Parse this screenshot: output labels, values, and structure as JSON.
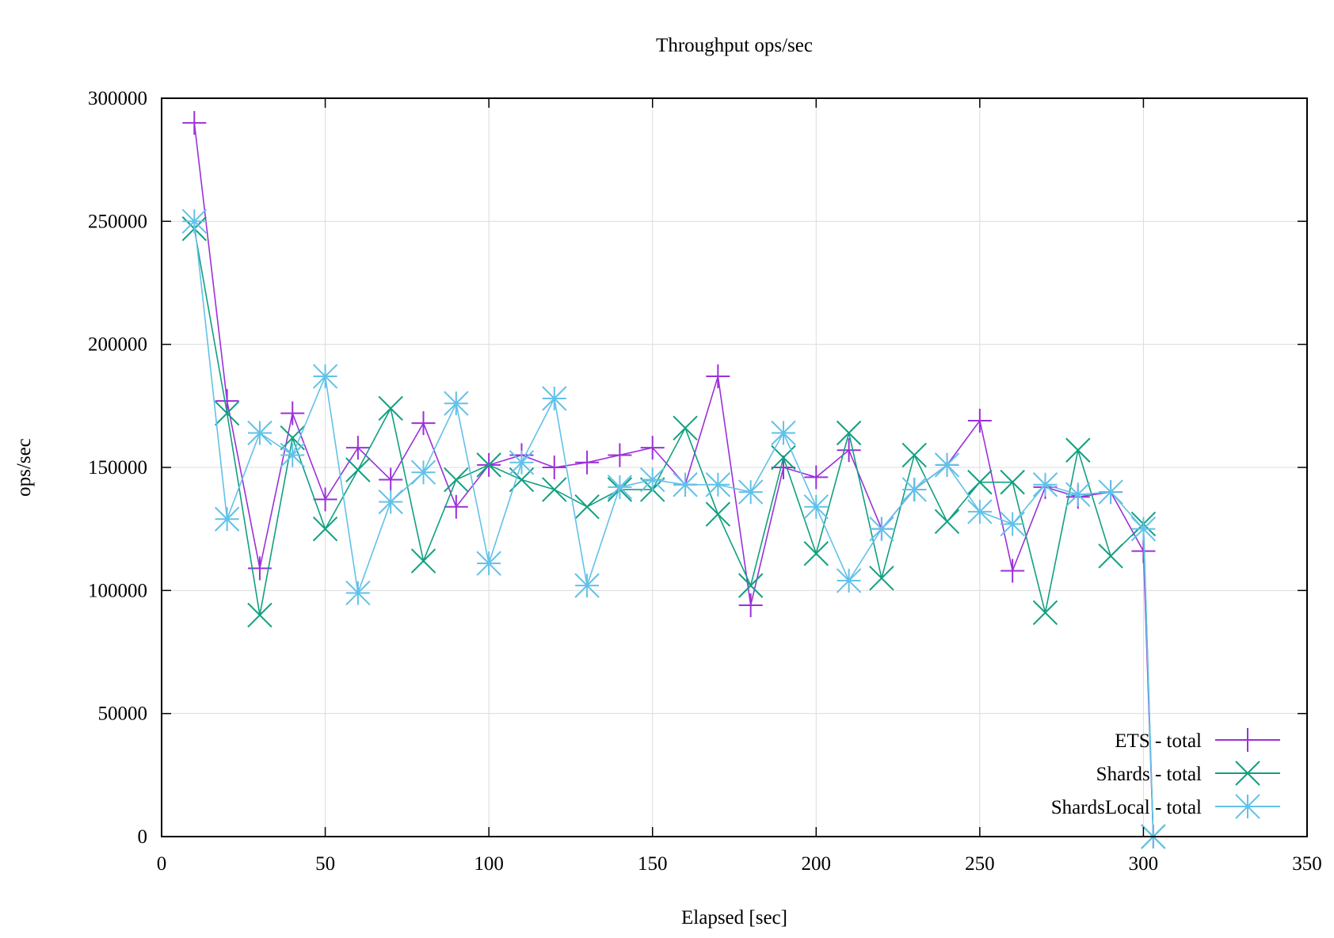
{
  "chart_data": {
    "type": "line",
    "title": "Throughput ops/sec",
    "xlabel": "Elapsed [sec]",
    "ylabel": "ops/sec",
    "xlim": [
      0,
      350
    ],
    "ylim": [
      0,
      300000
    ],
    "xticks": [
      0,
      50,
      100,
      150,
      200,
      250,
      300,
      350
    ],
    "yticks": [
      0,
      50000,
      100000,
      150000,
      200000,
      250000,
      300000
    ],
    "grid": true,
    "legend_position": "bottom-right",
    "series": [
      {
        "name": "ETS - total",
        "color": "#9b30d9",
        "marker": "plus",
        "x": [
          10,
          20,
          30,
          40,
          50,
          60,
          70,
          80,
          90,
          100,
          110,
          120,
          130,
          140,
          150,
          160,
          170,
          180,
          190,
          200,
          210,
          220,
          230,
          240,
          250,
          260,
          270,
          280,
          290,
          300,
          303
        ],
        "y": [
          290000,
          177000,
          109000,
          172000,
          137000,
          158000,
          145000,
          168000,
          134000,
          151000,
          155000,
          150000,
          152000,
          155000,
          158000,
          143000,
          187000,
          94000,
          150000,
          146000,
          157000,
          125000,
          141000,
          151000,
          169000,
          108000,
          142000,
          138000,
          140000,
          116000,
          0
        ]
      },
      {
        "name": "Shards - total",
        "color": "#10a080",
        "marker": "cross",
        "x": [
          10,
          20,
          30,
          40,
          50,
          60,
          70,
          80,
          90,
          100,
          110,
          120,
          130,
          140,
          150,
          160,
          170,
          180,
          190,
          200,
          210,
          220,
          230,
          240,
          250,
          260,
          270,
          280,
          290,
          300,
          303
        ],
        "y": [
          247000,
          172000,
          90000,
          162000,
          125000,
          149000,
          174000,
          112000,
          145000,
          151000,
          145000,
          141000,
          134000,
          141000,
          141000,
          166000,
          131000,
          102000,
          154000,
          115000,
          164000,
          105000,
          155000,
          128000,
          144000,
          144000,
          91000,
          157000,
          114000,
          127000,
          0
        ]
      },
      {
        "name": "ShardsLocal - total",
        "color": "#62c1e8",
        "marker": "star",
        "x": [
          10,
          20,
          30,
          40,
          50,
          60,
          70,
          80,
          90,
          100,
          110,
          120,
          130,
          140,
          150,
          160,
          170,
          180,
          190,
          200,
          210,
          220,
          230,
          240,
          250,
          260,
          270,
          280,
          290,
          300,
          303
        ],
        "y": [
          250000,
          129000,
          164000,
          155000,
          187000,
          99000,
          136000,
          148000,
          176000,
          111000,
          152000,
          178000,
          102000,
          142000,
          145000,
          143000,
          143000,
          140000,
          164000,
          134000,
          104000,
          125000,
          141000,
          151000,
          132000,
          127000,
          143000,
          139000,
          140000,
          125000,
          0
        ]
      }
    ]
  }
}
